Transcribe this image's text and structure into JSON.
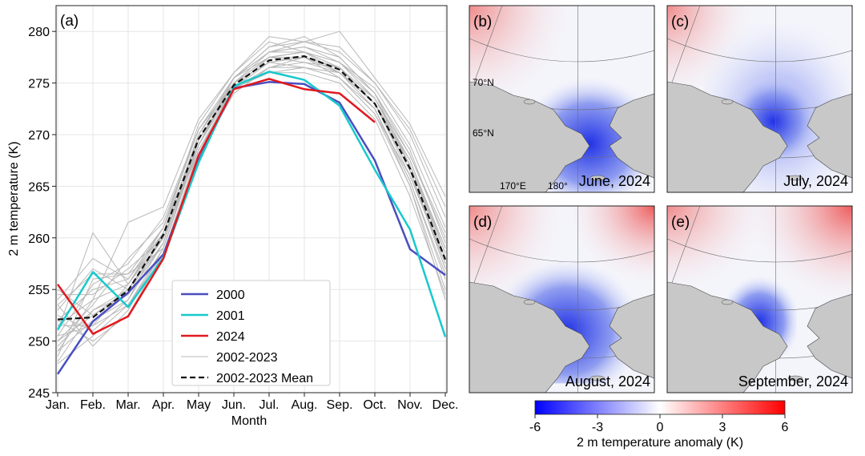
{
  "chart_data": [
    {
      "panel": "(a)",
      "type": "line",
      "xlabel": "Month",
      "ylabel": "2 m temperature (K)",
      "categories": [
        "Jan.",
        "Feb.",
        "Mar.",
        "Apr.",
        "May",
        "Jun.",
        "Jul.",
        "Aug.",
        "Sep.",
        "Oct.",
        "Nov.",
        "Dec."
      ],
      "ylim": [
        245,
        282.5
      ],
      "yticks": [
        245,
        250,
        255,
        260,
        265,
        270,
        275,
        280
      ],
      "grid": true,
      "legend_position": "bottom-center",
      "series": [
        {
          "name": "2000",
          "color": "#4a4fbf",
          "width": 2.5,
          "values": [
            246.8,
            251.9,
            254.7,
            258.4,
            267.5,
            274.5,
            275.1,
            274.9,
            273.1,
            267.5,
            258.9,
            256.4
          ]
        },
        {
          "name": "2001",
          "color": "#17c9cc",
          "width": 2.5,
          "values": [
            251.1,
            256.7,
            253.3,
            258.1,
            267.3,
            274.7,
            276.1,
            275.3,
            272.8,
            266.6,
            260.8,
            250.4
          ]
        },
        {
          "name": "2024",
          "color": "#e0191f",
          "width": 2.5,
          "values": [
            255.5,
            250.7,
            252.4,
            258.0,
            268.0,
            274.4,
            275.4,
            274.4,
            274.0,
            271.2,
            null,
            null
          ]
        },
        {
          "name": "2002-2023",
          "color": "#b8b8b8",
          "width": 1,
          "group": true,
          "values": [
            [
              249.5,
              253.0,
              255.0,
              259.5,
              270.0,
              275.0,
              277.0,
              277.5,
              276.0,
              273.0,
              266.0,
              258.0
            ],
            [
              252.5,
              251.0,
              254.0,
              260.5,
              269.0,
              275.5,
              278.0,
              278.5,
              277.0,
              273.5,
              268.0,
              260.0
            ],
            [
              247.8,
              250.5,
              253.5,
              258.5,
              268.0,
              274.0,
              276.5,
              276.5,
              275.5,
              272.0,
              265.0,
              255.0
            ],
            [
              254.0,
              258.0,
              256.0,
              261.0,
              271.0,
              276.0,
              279.5,
              279.0,
              278.0,
              275.0,
              270.0,
              262.0
            ],
            [
              250.5,
              255.5,
              257.5,
              262.0,
              270.5,
              275.5,
              278.5,
              279.5,
              277.5,
              274.0,
              267.0,
              259.0
            ],
            [
              253.5,
              249.5,
              253.0,
              259.0,
              269.5,
              274.5,
              277.5,
              277.0,
              276.5,
              273.0,
              266.5,
              257.0
            ],
            [
              249.0,
              254.0,
              261.5,
              263.0,
              271.5,
              276.0,
              279.0,
              278.0,
              277.0,
              274.5,
              269.0,
              261.0
            ],
            [
              251.5,
              251.5,
              255.5,
              260.0,
              268.5,
              274.5,
              276.0,
              276.0,
              275.0,
              271.5,
              264.0,
              254.5
            ],
            [
              255.0,
              252.5,
              254.5,
              260.5,
              270.0,
              275.0,
              277.5,
              277.5,
              276.5,
              273.0,
              267.5,
              258.5
            ],
            [
              248.5,
              256.0,
              256.5,
              259.0,
              269.0,
              275.5,
              278.0,
              278.0,
              276.0,
              272.5,
              265.5,
              256.0
            ],
            [
              252.0,
              250.0,
              252.5,
              258.5,
              268.5,
              274.0,
              276.5,
              277.5,
              275.5,
              272.0,
              266.0,
              257.5
            ],
            [
              250.0,
              253.5,
              258.0,
              261.5,
              270.5,
              275.0,
              278.0,
              278.5,
              277.5,
              274.0,
              268.5,
              259.5
            ],
            [
              253.0,
              257.0,
              255.0,
              260.0,
              269.0,
              274.5,
              277.0,
              276.5,
              276.0,
              273.5,
              267.0,
              258.0
            ],
            [
              249.0,
              252.0,
              254.0,
              259.5,
              270.0,
              275.5,
              278.5,
              279.0,
              278.5,
              275.0,
              270.5,
              263.0
            ],
            [
              251.0,
              260.5,
              255.5,
              261.0,
              269.5,
              275.0,
              277.5,
              278.0,
              276.5,
              273.0,
              266.5,
              257.5
            ],
            [
              254.5,
              254.5,
              257.0,
              260.0,
              268.5,
              274.5,
              276.0,
              276.5,
              275.5,
              272.5,
              265.0,
              254.0
            ],
            [
              250.5,
              251.5,
              253.5,
              259.0,
              269.0,
              275.0,
              277.0,
              277.5,
              276.0,
              273.0,
              267.0,
              258.5
            ],
            [
              252.0,
              255.0,
              256.0,
              260.5,
              270.0,
              275.5,
              278.0,
              279.0,
              280.0,
              275.5,
              271.0,
              264.0
            ],
            [
              248.0,
              253.0,
              254.5,
              259.5,
              269.5,
              274.5,
              276.5,
              277.0,
              276.0,
              272.5,
              265.5,
              256.5
            ],
            [
              253.5,
              256.5,
              256.5,
              261.0,
              270.5,
              275.0,
              277.5,
              278.0,
              277.0,
              274.0,
              268.0,
              260.5
            ],
            [
              250.0,
              252.5,
              255.0,
              260.0,
              269.0,
              275.0,
              277.0,
              277.5,
              276.5,
              273.0,
              266.5,
              257.0
            ],
            [
              251.5,
              254.0,
              255.5,
              260.5,
              270.0,
              275.5,
              277.5,
              278.0,
              276.5,
              273.5,
              267.5,
              259.0
            ]
          ]
        },
        {
          "name": "2002-2023 Mean",
          "color": "#111111",
          "width": 2.2,
          "dashed": true,
          "values": [
            252.1,
            252.3,
            254.9,
            260.3,
            269.6,
            274.8,
            277.2,
            277.6,
            276.3,
            273.0,
            266.7,
            257.9
          ]
        }
      ]
    },
    {
      "type": "heatmap",
      "description_panels": [
        {
          "panel": "(b)",
          "label": "June, 2024"
        },
        {
          "panel": "(c)",
          "label": "July, 2024"
        },
        {
          "panel": "(d)",
          "label": "August, 2024"
        },
        {
          "panel": "(e)",
          "label": "September, 2024"
        }
      ],
      "map_labels": {
        "lat70": "70°N",
        "lat65": "65°N",
        "lon170": "170°E",
        "lon180": "180°"
      },
      "colorbar": {
        "label": "2 m temperature anomaly (K)",
        "range": [
          -6,
          6
        ],
        "ticks": [
          "-6",
          "-3",
          "0",
          "3",
          "6"
        ],
        "colors": [
          "#0000ff",
          "#ffffff",
          "#ff0000"
        ]
      }
    }
  ],
  "colors": {
    "land": "#c8c8c8",
    "ocean_neutral": "#f6f7fb",
    "grid_line": "#6a6a6a"
  }
}
